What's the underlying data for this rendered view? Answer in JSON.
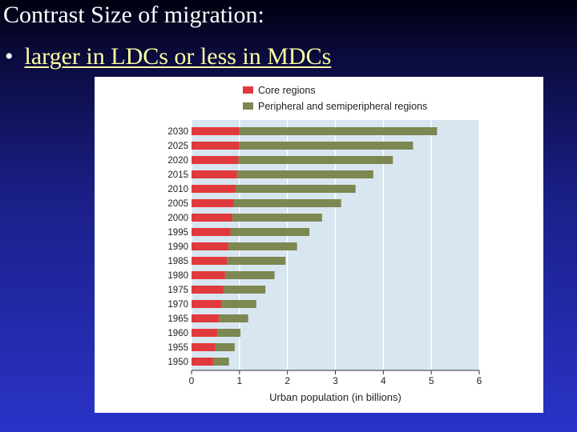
{
  "slide": {
    "title": "Contrast Size of migration:",
    "bullet_marker": "•",
    "bullet_text": "larger in LDCs or less in MDCs"
  },
  "chart_data": {
    "type": "bar",
    "orientation": "horizontal",
    "stacked": true,
    "categories": [
      "2030",
      "2025",
      "2020",
      "2015",
      "2010",
      "2005",
      "2000",
      "1995",
      "1990",
      "1985",
      "1980",
      "1975",
      "1970",
      "1965",
      "1960",
      "1955",
      "1950"
    ],
    "series": [
      {
        "name": "Core regions",
        "color": "#e03a3e",
        "values": [
          1.0,
          1.0,
          0.98,
          0.95,
          0.92,
          0.88,
          0.85,
          0.81,
          0.77,
          0.74,
          0.7,
          0.66,
          0.62,
          0.58,
          0.54,
          0.5,
          0.45
        ]
      },
      {
        "name": "Peripheral and semiperipheral regions",
        "color": "#7d8752",
        "values": [
          4.12,
          3.62,
          3.22,
          2.84,
          2.5,
          2.24,
          1.87,
          1.65,
          1.43,
          1.22,
          1.03,
          0.88,
          0.73,
          0.6,
          0.48,
          0.4,
          0.33
        ]
      }
    ],
    "xlabel": "Urban population (in billions)",
    "xlim": [
      0,
      6
    ],
    "xticks": [
      "0",
      "1",
      "2",
      "3",
      "4",
      "5",
      "6"
    ],
    "grid": true,
    "legend_position": "top",
    "plot_background": "#d7e6ef"
  }
}
